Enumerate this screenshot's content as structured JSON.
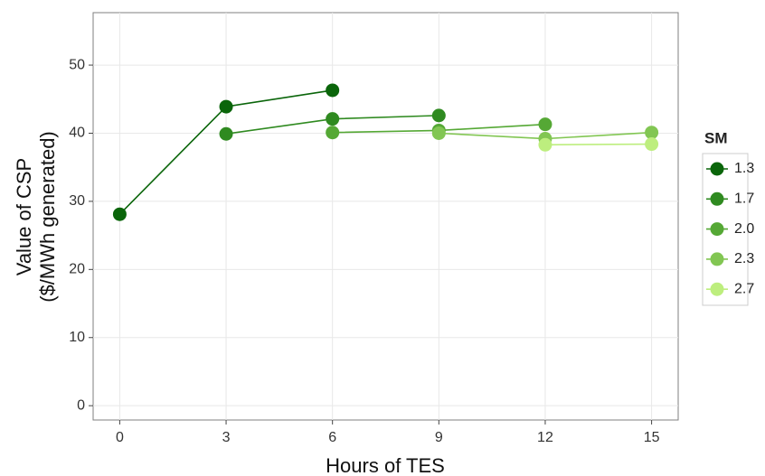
{
  "chart_data": {
    "type": "line",
    "xlabel": "Hours of TES",
    "ylabel": [
      "Value of CSP",
      "($/MWh generated)"
    ],
    "x": [
      0,
      3,
      6,
      9,
      12,
      15
    ],
    "series": [
      {
        "name": "1.3",
        "color": "#0a650a",
        "values": [
          28.1,
          43.9,
          46.3,
          null,
          null,
          null
        ]
      },
      {
        "name": "1.7",
        "color": "#2f8a20",
        "values": [
          null,
          39.9,
          42.1,
          42.6,
          null,
          null
        ]
      },
      {
        "name": "2.0",
        "color": "#55a835",
        "values": [
          null,
          null,
          40.1,
          40.4,
          41.3,
          null
        ]
      },
      {
        "name": "2.3",
        "color": "#82c653",
        "values": [
          null,
          null,
          null,
          40.0,
          39.2,
          40.1
        ]
      },
      {
        "name": "2.7",
        "color": "#bdee7e",
        "values": [
          null,
          null,
          null,
          null,
          38.3,
          38.4
        ]
      }
    ],
    "legend_title": "SM",
    "legend": "right",
    "xlim": [
      -0.75,
      15.75
    ],
    "xticks": [
      0,
      3,
      6,
      9,
      12,
      15
    ],
    "ylim": [
      -2.1,
      57.7
    ],
    "yticks": [
      0,
      10,
      20,
      30,
      40,
      50
    ],
    "grid": true
  }
}
